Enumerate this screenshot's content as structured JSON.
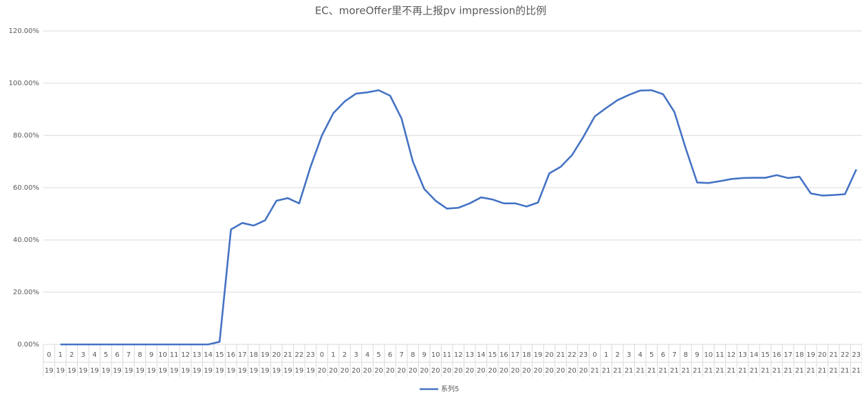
{
  "chart_data": {
    "type": "line",
    "title": "EC、moreOffer里不再上报pv impression的比例",
    "categories": [
      0,
      1,
      2,
      3,
      4,
      5,
      6,
      7,
      8,
      9,
      10,
      11,
      12,
      13,
      14,
      15,
      16,
      17,
      18,
      19,
      20,
      21,
      22,
      23,
      0,
      1,
      2,
      3,
      4,
      5,
      6,
      7,
      8,
      9,
      10,
      11,
      12,
      13,
      14,
      15,
      16,
      17,
      18,
      19,
      20,
      21,
      22,
      23,
      0,
      1,
      2,
      3,
      4,
      5,
      6,
      7,
      8,
      9,
      10,
      11,
      12,
      13,
      14,
      15,
      16,
      17,
      18,
      19,
      20,
      21,
      22,
      23
    ],
    "category_groups": [
      19,
      19,
      19,
      19,
      19,
      19,
      19,
      19,
      19,
      19,
      19,
      19,
      19,
      19,
      19,
      19,
      19,
      19,
      19,
      19,
      19,
      19,
      19,
      19,
      20,
      20,
      20,
      20,
      20,
      20,
      20,
      20,
      20,
      20,
      20,
      20,
      20,
      20,
      20,
      20,
      20,
      20,
      20,
      20,
      20,
      20,
      20,
      20,
      21,
      21,
      21,
      21,
      21,
      21,
      21,
      21,
      21,
      21,
      21,
      21,
      21,
      21,
      21,
      21,
      21,
      21,
      21,
      21,
      21,
      21,
      21,
      21
    ],
    "series": [
      {
        "name": "系列5",
        "color": "#4472c4",
        "values": [
          null,
          0,
          0,
          0,
          0,
          0,
          0,
          0,
          0,
          0,
          0,
          0,
          0,
          0,
          0,
          1,
          44,
          46.5,
          45.5,
          47.5,
          55,
          56,
          54,
          68,
          80,
          88.5,
          93,
          96,
          96.5,
          97.3,
          95.2,
          86.5,
          70,
          59.5,
          55,
          52,
          52.3,
          54,
          56.3,
          55.5,
          54,
          54,
          52.8,
          54.3,
          65.5,
          68,
          72.5,
          79.5,
          87.3,
          90.5,
          93.5,
          95.5,
          97.2,
          97.3,
          95.8,
          89,
          75,
          62,
          61.8,
          62.5,
          63.3,
          63.7,
          63.8,
          63.8,
          64.8,
          63.7,
          64.2,
          57.8,
          57,
          57.2,
          57.5,
          67
        ]
      }
    ],
    "ylim": [
      0,
      120
    ],
    "yticks": [
      {
        "value": 0,
        "label": "0.00%"
      },
      {
        "value": 20,
        "label": "20.00%"
      },
      {
        "value": 40,
        "label": "40.00%"
      },
      {
        "value": 60,
        "label": "60.00%"
      },
      {
        "value": 80,
        "label": "80.00%"
      },
      {
        "value": 100,
        "label": "100.00%"
      },
      {
        "value": 120,
        "label": "120.00%"
      }
    ],
    "grid": true,
    "legend": "bottom"
  }
}
